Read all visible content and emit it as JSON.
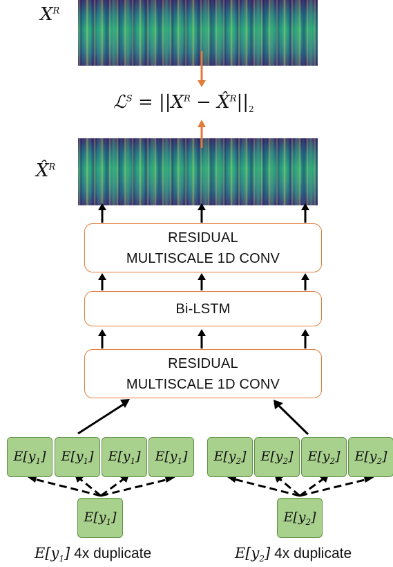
{
  "spectrograms": {
    "target_label": "X^R",
    "predicted_label": "X̂^R"
  },
  "loss": {
    "formula": "ℒ^S = ||X^R − X̂^R||_2"
  },
  "blocks": {
    "top": {
      "line1": "RESIDUAL",
      "line2": "MULTISCALE 1D CONV"
    },
    "middle": {
      "label": "Bi-LSTM"
    },
    "bottom": {
      "line1": "RESIDUAL",
      "line2": "MULTISCALE 1D CONV"
    }
  },
  "left_group": {
    "duplicates": [
      "E[y1]",
      "E[y1]",
      "E[y1]",
      "E[y1]"
    ],
    "source": "E[y1]",
    "caption_math": "E[y1]",
    "caption_text": "4x duplicate"
  },
  "right_group": {
    "duplicates": [
      "E[y2]",
      "E[y2]",
      "E[y2]",
      "E[y2]"
    ],
    "source": "E[y2]",
    "caption_math": "E[y2]",
    "caption_text": "4x duplicate"
  },
  "colors": {
    "loss_arrow": "#e07b39",
    "block_border": "#e07b39",
    "embedding_fill": "#a9d18e",
    "embedding_border": "#5f8f45"
  }
}
